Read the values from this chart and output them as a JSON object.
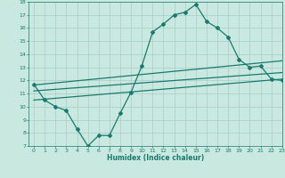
{
  "curve_x": [
    0,
    1,
    2,
    3,
    4,
    5,
    6,
    7,
    8,
    9,
    10,
    11,
    12,
    13,
    14,
    15,
    16,
    17,
    18,
    19,
    20,
    21,
    22,
    23
  ],
  "curve_y": [
    11.7,
    10.5,
    10.0,
    9.7,
    8.3,
    7.0,
    7.8,
    7.8,
    9.5,
    11.1,
    13.1,
    15.7,
    16.3,
    17.0,
    17.2,
    17.8,
    16.5,
    16.0,
    15.3,
    13.6,
    13.0,
    13.1,
    12.1,
    12.0
  ],
  "line1_x": [
    0,
    23
  ],
  "line1_y": [
    11.65,
    13.5
  ],
  "line2_x": [
    0,
    23
  ],
  "line2_y": [
    11.2,
    12.6
  ],
  "line3_x": [
    0,
    23
  ],
  "line3_y": [
    10.5,
    12.1
  ],
  "ylim": [
    7,
    18
  ],
  "xlim": [
    -0.5,
    23
  ],
  "yticks": [
    7,
    8,
    9,
    10,
    11,
    12,
    13,
    14,
    15,
    16,
    17,
    18
  ],
  "xticks": [
    0,
    1,
    2,
    3,
    4,
    5,
    6,
    7,
    8,
    9,
    10,
    11,
    12,
    13,
    14,
    15,
    16,
    17,
    18,
    19,
    20,
    21,
    22,
    23
  ],
  "xlabel": "Humidex (Indice chaleur)",
  "line_color": "#1a7a6e",
  "bg_color": "#c8e8e0",
  "grid_color": "#a8ccc8"
}
